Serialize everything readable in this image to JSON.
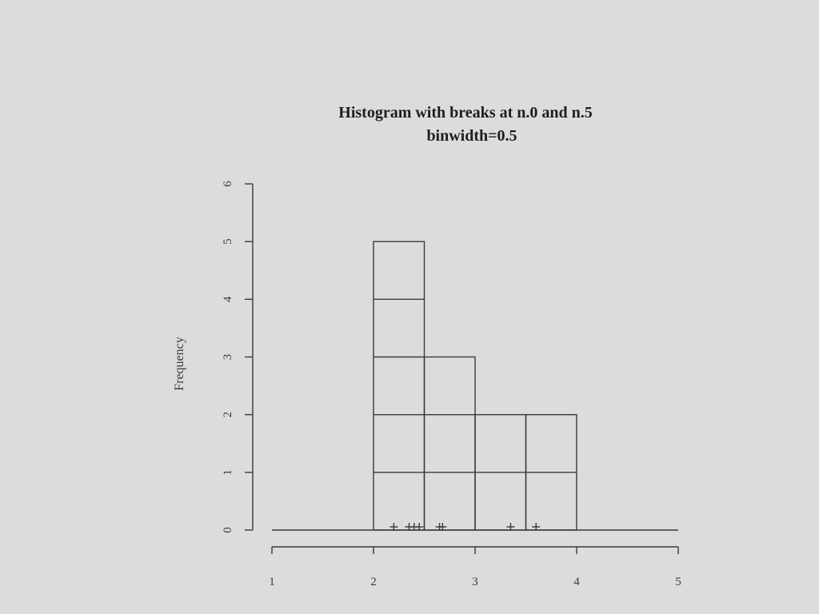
{
  "chart_data": {
    "type": "bar",
    "title": "Histogram with breaks at n.0 and n.5",
    "subtitle": "binwidth=0.5",
    "xlabel": "",
    "ylabel": "Frequency",
    "xlim": [
      1,
      5
    ],
    "ylim": [
      0,
      6
    ],
    "x_ticks": [
      1,
      2,
      3,
      4,
      5
    ],
    "y_ticks": [
      0,
      1,
      2,
      3,
      4,
      5,
      6
    ],
    "breaks": [
      2.0,
      2.5,
      3.0,
      3.5,
      4.0
    ],
    "values": [
      5,
      3,
      2,
      2
    ],
    "rug": [
      2.2,
      2.35,
      2.4,
      2.45,
      2.65,
      2.68,
      3.35,
      3.6
    ],
    "grid": false,
    "colors": {
      "background": "#dcdcdc",
      "ink": "#3a3a3a",
      "title": "#1e1e1e"
    }
  }
}
